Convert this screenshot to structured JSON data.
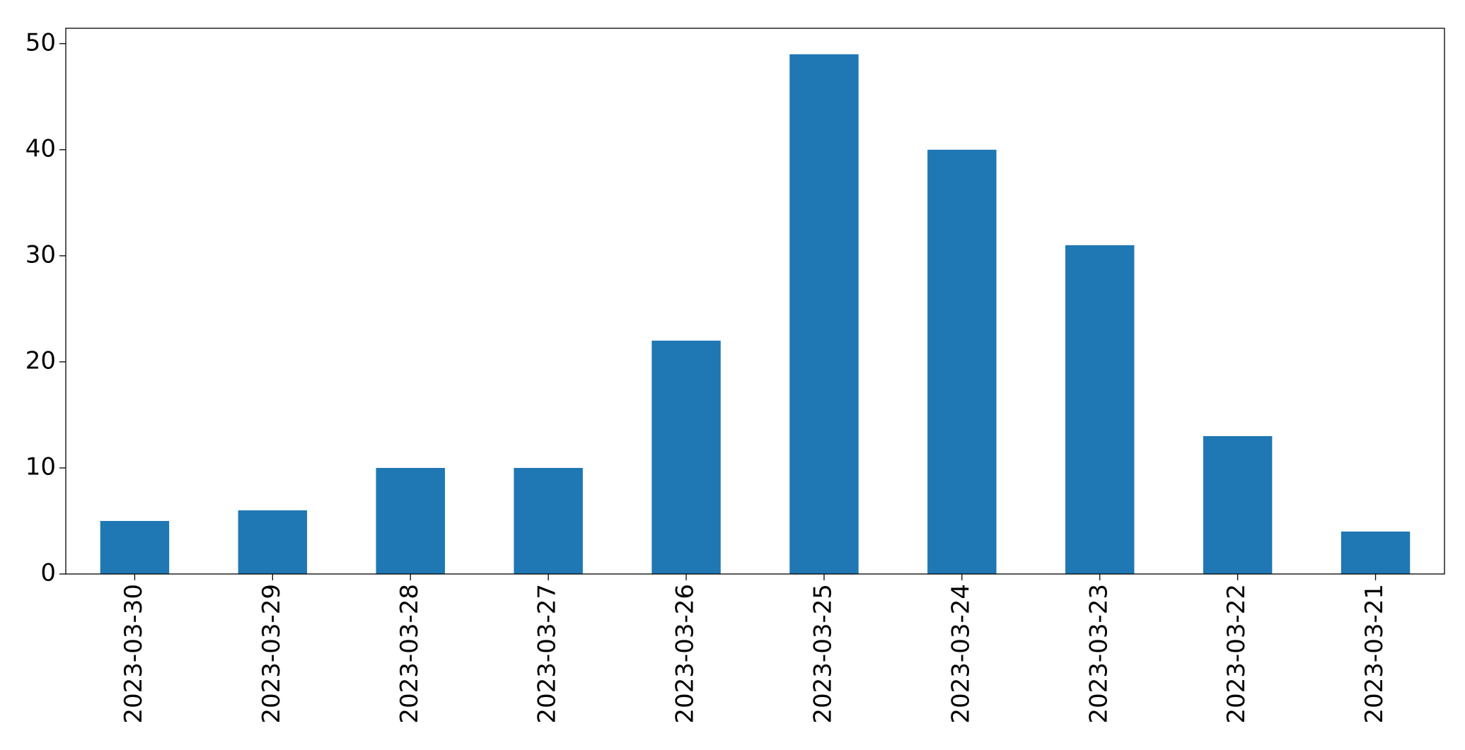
{
  "chart_data": {
    "type": "bar",
    "categories": [
      "2023-03-30",
      "2023-03-29",
      "2023-03-28",
      "2023-03-27",
      "2023-03-26",
      "2023-03-25",
      "2023-03-24",
      "2023-03-23",
      "2023-03-22",
      "2023-03-21"
    ],
    "values": [
      5,
      6,
      10,
      10,
      22,
      49,
      40,
      31,
      13,
      4
    ],
    "color": "#1f77b4",
    "ylim": [
      0,
      51.45
    ],
    "yticks": [
      0,
      10,
      20,
      30,
      40,
      50
    ],
    "grid": false
  }
}
